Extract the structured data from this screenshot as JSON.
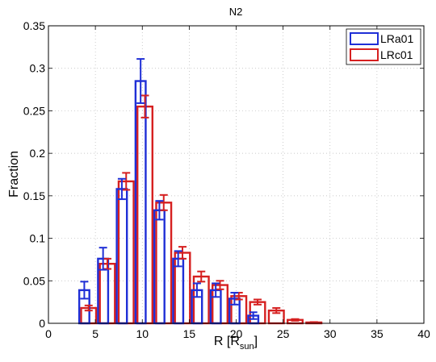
{
  "chart_data": {
    "type": "bar",
    "title": "N2",
    "xlabel_main": "R [R",
    "xlabel_sub": "sun",
    "xlabel_close": "]",
    "ylabel": "Fraction",
    "xlim": [
      0,
      40
    ],
    "ylim": [
      0,
      0.35
    ],
    "xticks": [
      "0",
      "5",
      "10",
      "15",
      "20",
      "25",
      "30",
      "35",
      "40"
    ],
    "yticks": [
      "0",
      "0.05",
      "0.1",
      "0.15",
      "0.2",
      "0.25",
      "0.3",
      "0.35"
    ],
    "grid": true,
    "legend_position": "top-right",
    "bin_width": 2,
    "x": [
      2,
      4,
      6,
      8,
      10,
      12,
      14,
      16,
      18,
      20,
      22,
      24,
      26,
      28,
      30,
      32,
      34,
      36,
      38
    ],
    "series": [
      {
        "name": "LRa01",
        "color": "#1f2fd6",
        "values": [
          0,
          0.039,
          0.076,
          0.158,
          0.285,
          0.133,
          0.076,
          0.039,
          0.039,
          0.029,
          0.009,
          0,
          0,
          0,
          0,
          0,
          0,
          0,
          0
        ],
        "errors": [
          0,
          0.01,
          0.013,
          0.012,
          0.026,
          0.011,
          0.009,
          0.008,
          0.008,
          0.007,
          0.004,
          0,
          0,
          0,
          0,
          0,
          0,
          0,
          0
        ]
      },
      {
        "name": "LRc01",
        "color": "#d62020",
        "values": [
          0,
          0.018,
          0.07,
          0.167,
          0.255,
          0.142,
          0.083,
          0.055,
          0.045,
          0.032,
          0.025,
          0.015,
          0.004,
          0.001,
          0,
          0,
          0,
          0,
          0
        ],
        "errors": [
          0,
          0.003,
          0.006,
          0.01,
          0.013,
          0.009,
          0.007,
          0.006,
          0.005,
          0.004,
          0.003,
          0.003,
          0.001,
          0.0005,
          0,
          0,
          0,
          0,
          0
        ]
      }
    ]
  }
}
